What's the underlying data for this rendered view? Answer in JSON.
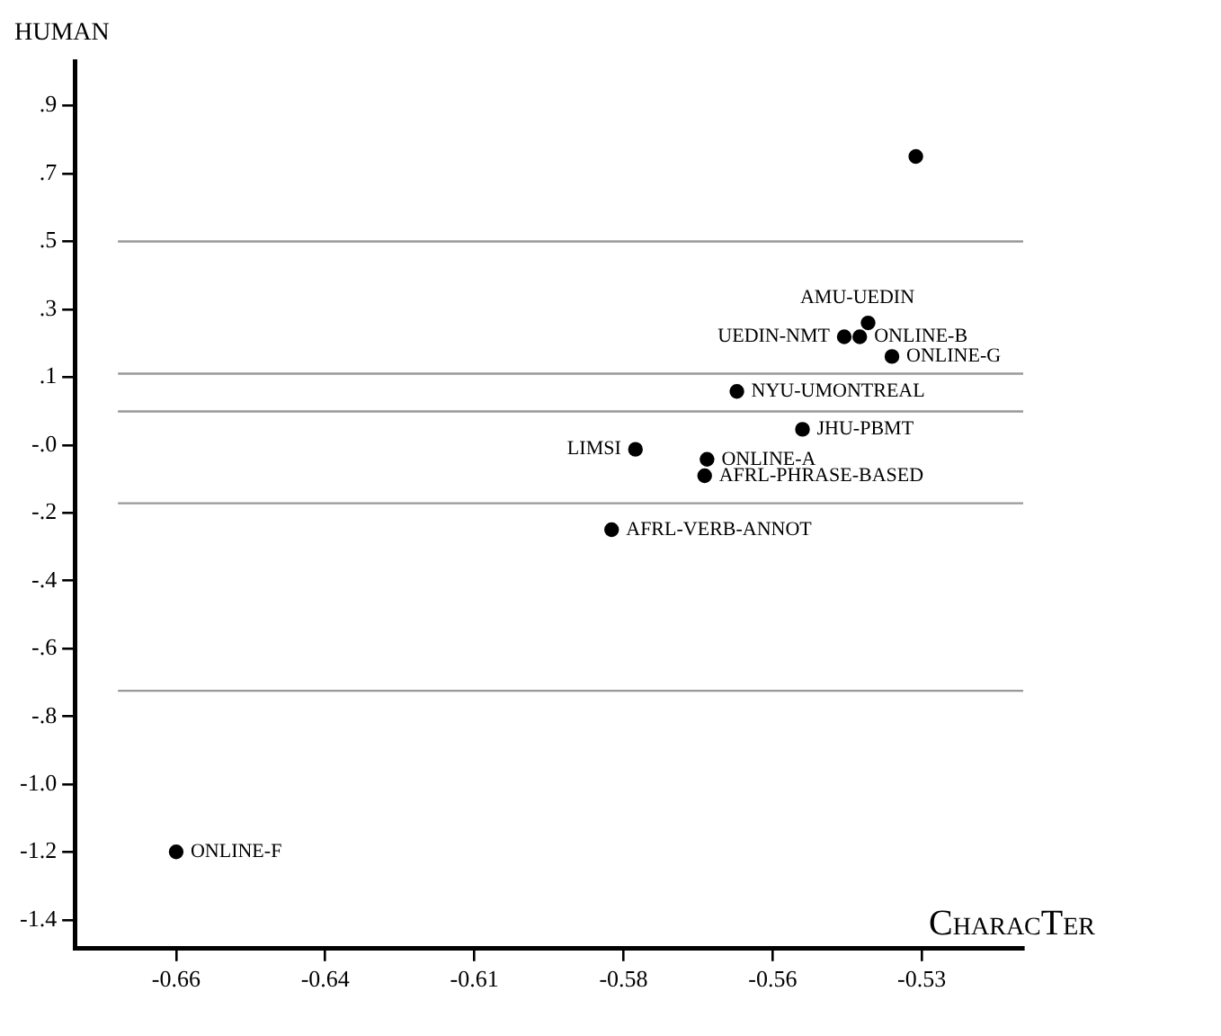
{
  "chart_data": {
    "type": "scatter",
    "xlabel": "CharacTer",
    "ylabel": "HUMAN",
    "x": [
      -0.536,
      -0.544,
      -0.548,
      -0.5454,
      -0.54,
      -0.566,
      -0.555,
      -0.583,
      -0.571,
      -0.5714,
      -0.587,
      -0.66
    ],
    "series": [
      {
        "color": "#000000",
        "values": [
          0.758,
          0.292,
          0.253,
          0.253,
          0.198,
          0.1,
          -0.006,
          -0.062,
          -0.09,
          -0.136,
          -0.287,
          -1.189
        ]
      }
    ],
    "marker": "circle",
    "xlim": [
      -0.677,
      -0.518
    ],
    "xticks": [
      {
        "value": -0.66,
        "label": "-0.66"
      },
      {
        "value": -0.635,
        "label": "-0.64"
      },
      {
        "value": -0.61,
        "label": "-0.61"
      },
      {
        "value": -0.585,
        "label": "-0.58"
      },
      {
        "value": -0.56,
        "label": "-0.56"
      },
      {
        "value": -0.535,
        "label": "-0.53"
      }
    ],
    "ylim": [
      -1.46,
      1.025
    ],
    "yticks": [
      {
        "value": 0.9,
        "label": ".9"
      },
      {
        "value": 0.71,
        "label": ".7"
      },
      {
        "value": 0.52,
        "label": ".5"
      },
      {
        "value": 0.33,
        "label": ".3"
      },
      {
        "value": 0.14,
        "label": ".1"
      },
      {
        "value": -0.05,
        "label": "-.0"
      },
      {
        "value": -0.24,
        "label": "-.2"
      },
      {
        "value": -0.43,
        "label": "-.4"
      },
      {
        "value": -0.62,
        "label": "-.6"
      },
      {
        "value": -0.81,
        "label": "-.8"
      },
      {
        "value": -1.0,
        "label": "-1.0"
      },
      {
        "value": -1.19,
        "label": "-1.2"
      },
      {
        "value": -1.38,
        "label": "-1.4"
      }
    ],
    "ref_lines": [
      {
        "axis": "y",
        "value": 0.52,
        "color": "#999999"
      },
      {
        "axis": "y",
        "value": 0.15,
        "color": "#999999"
      },
      {
        "axis": "y",
        "value": 0.044,
        "color": "#999999"
      },
      {
        "axis": "y",
        "value": -0.213,
        "color": "#999999"
      },
      {
        "axis": "y",
        "value": -0.738,
        "color": "#999999"
      }
    ],
    "annotations": [
      {
        "text": "AMU-UEDIN",
        "x": -0.544,
        "y": 0.292
      },
      {
        "text": "UEDIN-NMT",
        "x": -0.548,
        "y": 0.253
      },
      {
        "text": "ONLINE-B",
        "x": -0.5454,
        "y": 0.253
      },
      {
        "text": "ONLINE-G",
        "x": -0.54,
        "y": 0.198
      },
      {
        "text": "NYU-UMONTREAL",
        "x": -0.566,
        "y": 0.1
      },
      {
        "text": "JHU-PBMT",
        "x": -0.555,
        "y": -0.006
      },
      {
        "text": "LIMSI",
        "x": -0.583,
        "y": -0.062
      },
      {
        "text": "ONLINE-A",
        "x": -0.571,
        "y": -0.09
      },
      {
        "text": "AFRL-PHRASE-BASED",
        "x": -0.5714,
        "y": -0.136
      },
      {
        "text": "AFRL-VERB-ANNOT",
        "x": -0.587,
        "y": -0.287
      },
      {
        "text": "ONLINE-F",
        "x": -0.66,
        "y": -1.189
      }
    ]
  }
}
